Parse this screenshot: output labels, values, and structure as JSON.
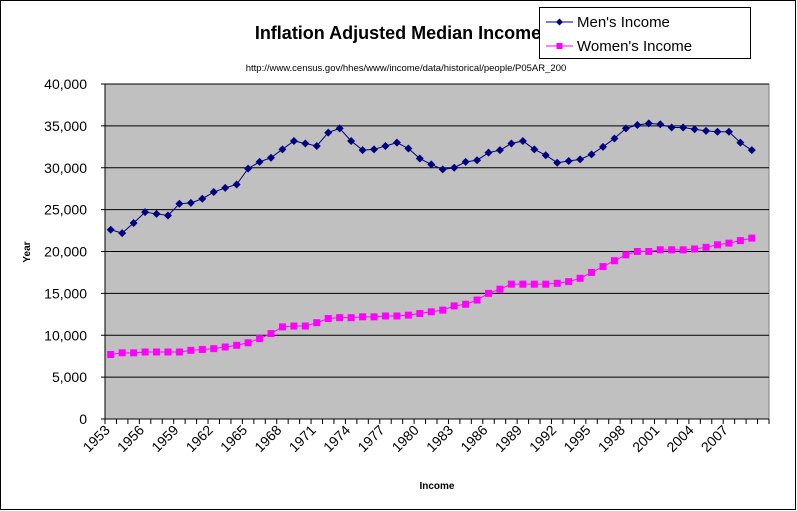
{
  "chart_data": {
    "type": "line",
    "title": "Inflation Adjusted Median Income",
    "subtitle": "http://www.census.gov/hhes/www/income/data/historical/people/P05AR_200",
    "xlabel": "Income",
    "ylabel": "Year",
    "ylim": [
      0,
      40000
    ],
    "yticks": [
      "0",
      "5,000",
      "10,000",
      "15,000",
      "20,000",
      "25,000",
      "30,000",
      "35,000",
      "40,000"
    ],
    "xtick_labels": [
      "1953",
      "1956",
      "1959",
      "1962",
      "1965",
      "1968",
      "1971",
      "1974",
      "1977",
      "1980",
      "1983",
      "1986",
      "1989",
      "1992",
      "1995",
      "1998",
      "2001",
      "2004",
      "2007"
    ],
    "grid": true,
    "legend": "top-right",
    "plot_background": "#c0c0c0",
    "x": [
      1953,
      1954,
      1955,
      1956,
      1957,
      1958,
      1959,
      1960,
      1961,
      1962,
      1963,
      1964,
      1965,
      1966,
      1967,
      1968,
      1969,
      1970,
      1971,
      1972,
      1973,
      1974,
      1975,
      1976,
      1977,
      1978,
      1979,
      1980,
      1981,
      1982,
      1983,
      1984,
      1985,
      1986,
      1987,
      1988,
      1989,
      1990,
      1991,
      1992,
      1993,
      1994,
      1995,
      1996,
      1997,
      1998,
      1999,
      2000,
      2001,
      2002,
      2003,
      2004,
      2005,
      2006,
      2007,
      2008,
      2009
    ],
    "series": [
      {
        "name": "Men's Income",
        "color": "#000080",
        "marker": "diamond",
        "values": [
          22600,
          22200,
          23400,
          24700,
          24500,
          24300,
          25700,
          25800,
          26300,
          27100,
          27600,
          28000,
          29900,
          30700,
          31200,
          32200,
          33200,
          32900,
          32600,
          34200,
          34700,
          33200,
          32100,
          32200,
          32600,
          33000,
          32300,
          31100,
          30400,
          29800,
          30000,
          30700,
          30900,
          31800,
          32100,
          32900,
          33200,
          32200,
          31500,
          30600,
          30800,
          31000,
          31600,
          32500,
          33500,
          34700,
          35100,
          35300,
          35200,
          34800,
          34800,
          34600,
          34400,
          34300,
          34300,
          33000,
          32100
        ]
      },
      {
        "name": "Women's Income",
        "color": "#ff00ff",
        "marker": "square",
        "values": [
          7700,
          7900,
          7900,
          8000,
          8000,
          8000,
          8000,
          8200,
          8300,
          8400,
          8600,
          8800,
          9100,
          9600,
          10200,
          11000,
          11100,
          11100,
          11500,
          12000,
          12100,
          12100,
          12200,
          12200,
          12300,
          12300,
          12400,
          12600,
          12800,
          13000,
          13500,
          13700,
          14200,
          15000,
          15500,
          16100,
          16100,
          16100,
          16100,
          16200,
          16400,
          16800,
          17500,
          18200,
          18900,
          19600,
          20000,
          20000,
          20200,
          20200,
          20200,
          20300,
          20500,
          20800,
          21000,
          21300,
          21600
        ]
      }
    ]
  }
}
